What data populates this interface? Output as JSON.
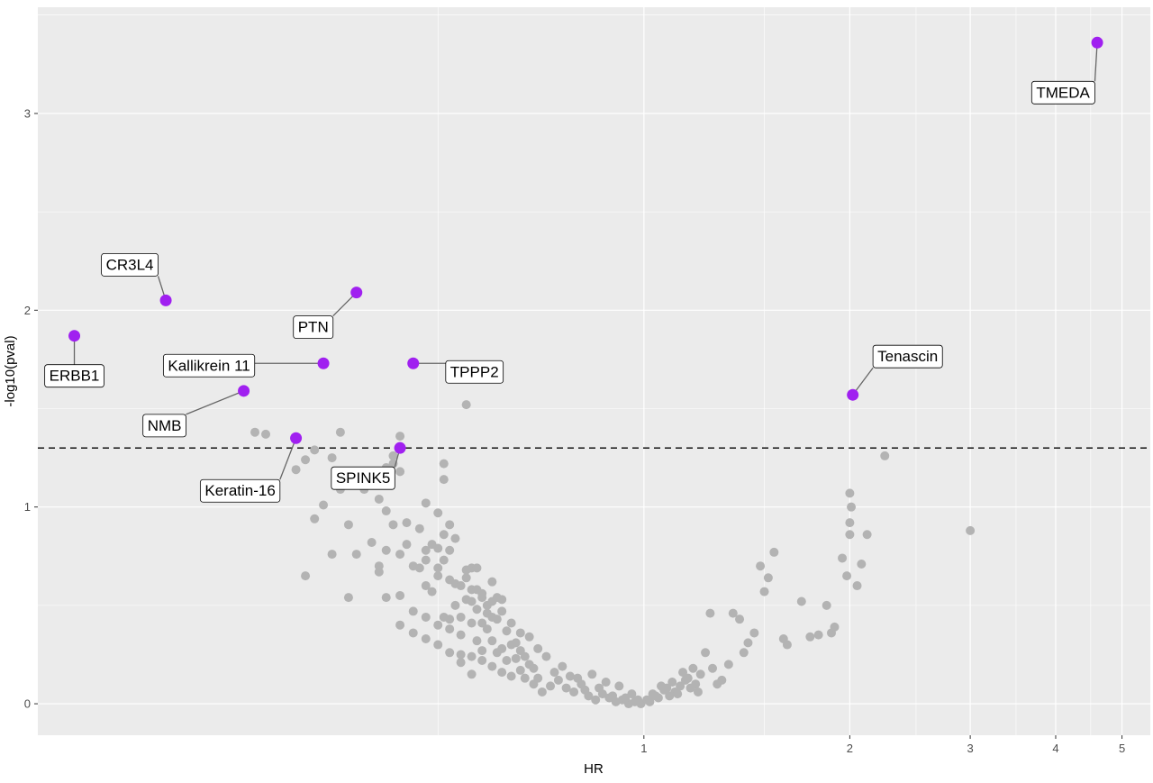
{
  "chart_data": {
    "type": "scatter",
    "title": "",
    "xlabel": "HR",
    "ylabel": "-log10(pval)",
    "x_scale": "log10",
    "xlim": [
      0.13,
      5.5
    ],
    "ylim": [
      -0.16,
      3.54
    ],
    "x_ticks": [
      {
        "value": 1,
        "label": "1"
      },
      {
        "value": 2,
        "label": "2"
      },
      {
        "value": 3,
        "label": "3"
      },
      {
        "value": 4,
        "label": "4"
      },
      {
        "value": 5,
        "label": "5"
      }
    ],
    "y_ticks": [
      {
        "value": 0,
        "label": "0"
      },
      {
        "value": 1,
        "label": "1"
      },
      {
        "value": 2,
        "label": "2"
      },
      {
        "value": 3,
        "label": "3"
      }
    ],
    "significance_line": {
      "y": 1.3,
      "style": "dashed"
    },
    "grid": true,
    "colors": {
      "panel_background": "#ebebeb",
      "grid_line": "#ffffff",
      "background_points": "#b3b3b3",
      "significant_points": "#a020f0",
      "threshold_line": "#000000"
    },
    "highlighted": [
      {
        "label": "TMEDA",
        "hr": 4.6,
        "y": 3.36
      },
      {
        "label": "CR3L4",
        "hr": 0.2,
        "y": 2.05
      },
      {
        "label": "PTN",
        "hr": 0.38,
        "y": 2.09
      },
      {
        "label": "ERBB1",
        "hr": 0.147,
        "y": 1.87
      },
      {
        "label": "Kallikrein 11",
        "hr": 0.34,
        "y": 1.73
      },
      {
        "label": "TPPP2",
        "hr": 0.46,
        "y": 1.73
      },
      {
        "label": "Tenascin",
        "hr": 2.02,
        "y": 1.57
      },
      {
        "label": "NMB",
        "hr": 0.26,
        "y": 1.59
      },
      {
        "label": "Keratin-16",
        "hr": 0.31,
        "y": 1.35
      },
      {
        "label": "SPINK5",
        "hr": 0.44,
        "y": 1.3
      }
    ],
    "points": [
      [
        0.27,
        1.38
      ],
      [
        0.28,
        1.37
      ],
      [
        0.35,
        1.25
      ],
      [
        0.36,
        1.38
      ],
      [
        0.33,
        1.29
      ],
      [
        0.31,
        1.19
      ],
      [
        0.32,
        1.24
      ],
      [
        0.36,
        1.09
      ],
      [
        0.39,
        1.09
      ],
      [
        0.4,
        1.14
      ],
      [
        0.43,
        1.22
      ],
      [
        0.44,
        1.36
      ],
      [
        0.43,
        1.26
      ],
      [
        0.42,
        1.2
      ],
      [
        0.44,
        1.18
      ],
      [
        0.41,
        1.04
      ],
      [
        0.42,
        0.98
      ],
      [
        0.48,
        1.02
      ],
      [
        0.51,
        1.22
      ],
      [
        0.51,
        1.14
      ],
      [
        0.55,
        1.52
      ],
      [
        0.43,
        0.91
      ],
      [
        0.45,
        0.92
      ],
      [
        0.47,
        0.89
      ],
      [
        0.5,
        0.97
      ],
      [
        0.52,
        0.91
      ],
      [
        0.34,
        1.01
      ],
      [
        0.33,
        0.94
      ],
      [
        0.37,
        0.91
      ],
      [
        0.38,
        0.76
      ],
      [
        0.35,
        0.76
      ],
      [
        0.32,
        0.65
      ],
      [
        0.37,
        0.54
      ],
      [
        0.4,
        0.82
      ],
      [
        0.41,
        0.7
      ],
      [
        0.41,
        0.67
      ],
      [
        0.42,
        0.78
      ],
      [
        0.44,
        0.76
      ],
      [
        0.45,
        0.81
      ],
      [
        0.46,
        0.7
      ],
      [
        0.47,
        0.69
      ],
      [
        0.48,
        0.78
      ],
      [
        0.49,
        0.81
      ],
      [
        0.5,
        0.79
      ],
      [
        0.51,
        0.86
      ],
      [
        0.52,
        0.78
      ],
      [
        0.51,
        0.73
      ],
      [
        0.5,
        0.65
      ],
      [
        0.48,
        0.6
      ],
      [
        0.49,
        0.57
      ],
      [
        0.53,
        0.61
      ],
      [
        0.55,
        0.64
      ],
      [
        0.56,
        0.69
      ],
      [
        0.57,
        0.69
      ],
      [
        0.6,
        0.62
      ],
      [
        0.58,
        0.54
      ],
      [
        0.55,
        0.53
      ],
      [
        0.56,
        0.52
      ],
      [
        0.53,
        0.5
      ],
      [
        0.51,
        0.44
      ],
      [
        0.52,
        0.43
      ],
      [
        0.54,
        0.44
      ],
      [
        0.57,
        0.48
      ],
      [
        0.59,
        0.46
      ],
      [
        0.61,
        0.54
      ],
      [
        0.62,
        0.53
      ],
      [
        0.6,
        0.44
      ],
      [
        0.58,
        0.41
      ],
      [
        0.56,
        0.41
      ],
      [
        0.54,
        0.35
      ],
      [
        0.52,
        0.38
      ],
      [
        0.5,
        0.4
      ],
      [
        0.48,
        0.44
      ],
      [
        0.46,
        0.47
      ],
      [
        0.44,
        0.55
      ],
      [
        0.42,
        0.54
      ],
      [
        0.44,
        0.4
      ],
      [
        0.46,
        0.36
      ],
      [
        0.48,
        0.33
      ],
      [
        0.5,
        0.3
      ],
      [
        0.52,
        0.26
      ],
      [
        0.54,
        0.25
      ],
      [
        0.56,
        0.24
      ],
      [
        0.58,
        0.27
      ],
      [
        0.6,
        0.32
      ],
      [
        0.62,
        0.28
      ],
      [
        0.64,
        0.3
      ],
      [
        0.66,
        0.27
      ],
      [
        0.68,
        0.2
      ],
      [
        0.66,
        0.17
      ],
      [
        0.64,
        0.14
      ],
      [
        0.62,
        0.16
      ],
      [
        0.6,
        0.19
      ],
      [
        0.58,
        0.22
      ],
      [
        0.56,
        0.15
      ],
      [
        0.54,
        0.21
      ],
      [
        0.57,
        0.32
      ],
      [
        0.59,
        0.38
      ],
      [
        0.61,
        0.26
      ],
      [
        0.63,
        0.22
      ],
      [
        0.65,
        0.23
      ],
      [
        0.67,
        0.13
      ],
      [
        0.69,
        0.1
      ],
      [
        0.71,
        0.06
      ],
      [
        0.73,
        0.09
      ],
      [
        0.75,
        0.12
      ],
      [
        0.77,
        0.08
      ],
      [
        0.79,
        0.06
      ],
      [
        0.81,
        0.1
      ],
      [
        0.83,
        0.04
      ],
      [
        0.85,
        0.02
      ],
      [
        0.87,
        0.05
      ],
      [
        0.89,
        0.03
      ],
      [
        0.91,
        0.01
      ],
      [
        0.93,
        0.02
      ],
      [
        0.95,
        0.0
      ],
      [
        0.97,
        0.01
      ],
      [
        0.99,
        0.0
      ],
      [
        1.01,
        0.02
      ],
      [
        1.03,
        0.05
      ],
      [
        1.05,
        0.03
      ],
      [
        1.07,
        0.07
      ],
      [
        1.09,
        0.04
      ],
      [
        1.11,
        0.06
      ],
      [
        1.13,
        0.09
      ],
      [
        1.15,
        0.12
      ],
      [
        1.17,
        0.08
      ],
      [
        1.19,
        0.1
      ],
      [
        1.21,
        0.15
      ],
      [
        1.23,
        0.26
      ],
      [
        1.25,
        0.46
      ],
      [
        1.18,
        0.18
      ],
      [
        1.2,
        0.06
      ],
      [
        1.3,
        0.12
      ],
      [
        1.33,
        0.2
      ],
      [
        1.35,
        0.46
      ],
      [
        1.38,
        0.43
      ],
      [
        1.4,
        0.26
      ],
      [
        1.42,
        0.31
      ],
      [
        1.45,
        0.36
      ],
      [
        1.48,
        0.7
      ],
      [
        1.5,
        0.57
      ],
      [
        1.52,
        0.64
      ],
      [
        1.55,
        0.77
      ],
      [
        1.6,
        0.33
      ],
      [
        1.62,
        0.3
      ],
      [
        1.7,
        0.52
      ],
      [
        1.75,
        0.34
      ],
      [
        1.8,
        0.35
      ],
      [
        1.85,
        0.5
      ],
      [
        1.88,
        0.36
      ],
      [
        1.9,
        0.39
      ],
      [
        1.95,
        0.74
      ],
      [
        1.98,
        0.65
      ],
      [
        2.0,
        1.07
      ],
      [
        2.01,
        1.0
      ],
      [
        2.0,
        0.92
      ],
      [
        2.0,
        0.86
      ],
      [
        2.05,
        0.6
      ],
      [
        2.08,
        0.71
      ],
      [
        2.12,
        0.86
      ],
      [
        2.25,
        1.26
      ],
      [
        3.0,
        0.88
      ],
      [
        1.28,
        0.1
      ],
      [
        1.26,
        0.18
      ],
      [
        0.96,
        0.05
      ],
      [
        0.92,
        0.09
      ],
      [
        0.88,
        0.11
      ],
      [
        0.84,
        0.15
      ],
      [
        0.8,
        0.13
      ],
      [
        0.76,
        0.19
      ],
      [
        0.72,
        0.24
      ],
      [
        0.7,
        0.28
      ],
      [
        0.68,
        0.34
      ],
      [
        0.66,
        0.36
      ],
      [
        0.64,
        0.41
      ],
      [
        0.62,
        0.47
      ],
      [
        0.6,
        0.52
      ],
      [
        0.58,
        0.56
      ],
      [
        0.56,
        0.58
      ],
      [
        0.54,
        0.6
      ],
      [
        0.52,
        0.63
      ],
      [
        0.5,
        0.69
      ],
      [
        0.48,
        0.73
      ],
      [
        0.53,
        0.84
      ],
      [
        0.55,
        0.68
      ],
      [
        0.57,
        0.58
      ],
      [
        0.59,
        0.5
      ],
      [
        0.61,
        0.43
      ],
      [
        0.63,
        0.37
      ],
      [
        0.65,
        0.31
      ],
      [
        0.67,
        0.24
      ],
      [
        0.69,
        0.18
      ],
      [
        0.7,
        0.13
      ],
      [
        0.74,
        0.16
      ],
      [
        0.78,
        0.14
      ],
      [
        0.82,
        0.07
      ],
      [
        0.86,
        0.08
      ],
      [
        0.9,
        0.04
      ],
      [
        0.94,
        0.03
      ],
      [
        0.98,
        0.02
      ],
      [
        1.02,
        0.01
      ],
      [
        1.06,
        0.09
      ],
      [
        1.1,
        0.11
      ],
      [
        1.14,
        0.16
      ],
      [
        1.16,
        0.13
      ],
      [
        1.12,
        0.05
      ],
      [
        1.08,
        0.08
      ],
      [
        1.04,
        0.04
      ]
    ]
  }
}
